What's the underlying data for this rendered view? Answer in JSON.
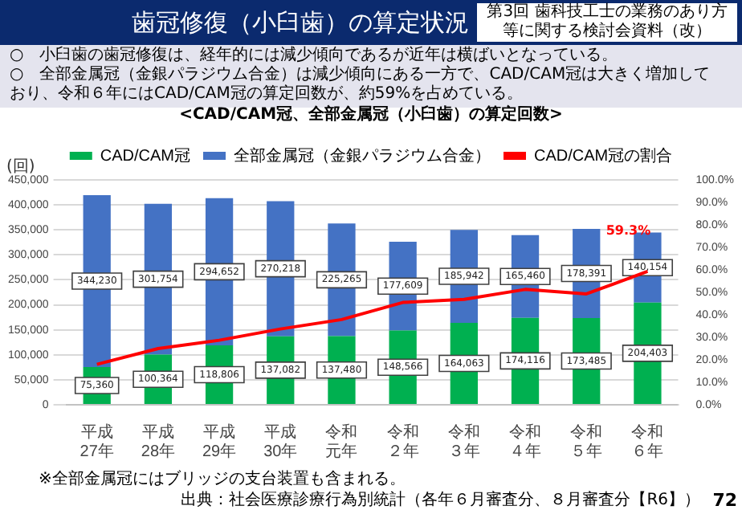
{
  "chart_data": {
    "type": "bar",
    "title": "歯冠修復（小臼歯）の算定状況",
    "subtitle": "<CAD/CAM冠、全部金属冠（小臼歯）の算定回数>",
    "ylabel": "(回)",
    "annotations": [
      "第3回 歯科技工士の業務のあり方等に関する検討会資料（改）",
      "○　小臼歯の歯冠修復は、経年的には減少傾向であるが近年は横ばいとなっている。",
      "○　全部金属冠（金銀パラジウム合金）は減少傾向にある一方で、CAD/CAM冠は大きく増加しており、令和６年にはCAD/CAM冠の算定回数が、約59%を占めている。",
      "※全部金属冠にはブリッジの支台装置も含まれる。",
      "出典：社会医療診療行為別統計（各年６月審査分、８月審査分【R6】）",
      "72"
    ],
    "categories": [
      "平成27年",
      "平成28年",
      "平成29年",
      "平成30年",
      "令和元年",
      "令和２年",
      "令和３年",
      "令和４年",
      "令和５年",
      "令和６年"
    ],
    "stacked": true,
    "legend": "top",
    "grid": "y",
    "series": [
      {
        "name": "CAD/CAM冠",
        "color": "#00b050",
        "values": [
          75360,
          100364,
          118806,
          137082,
          137480,
          148566,
          164063,
          174116,
          173485,
          204403
        ],
        "value_labels": [
          "75,360",
          "100,364",
          "118,806",
          "137,082",
          "137,480",
          "148,566",
          "164,063",
          "174,116",
          "173,485",
          "204,403"
        ]
      },
      {
        "name": "全部金属冠（金銀パラジウム合金）",
        "color": "#4472c4",
        "values": [
          344230,
          301754,
          294652,
          270218,
          225265,
          177609,
          185942,
          165460,
          178391,
          140154
        ],
        "value_labels": [
          "344,230",
          "301,754",
          "294,652",
          "270,218",
          "225,265",
          "177,609",
          "185,942",
          "165,460",
          "178,391",
          "140,154"
        ]
      },
      {
        "name": "CAD/CAM冠の割合",
        "type": "line",
        "axis": "y2",
        "color": "#ff0000",
        "values": [
          18.0,
          25.0,
          28.7,
          33.7,
          37.9,
          45.5,
          46.9,
          51.3,
          49.3,
          59.3
        ],
        "value_labels": [
          null,
          null,
          null,
          null,
          null,
          null,
          null,
          null,
          null,
          "59.3%"
        ]
      }
    ],
    "ylim": [
      0,
      450000
    ],
    "yticks": [
      0,
      {
        "value": 50000,
        "label": "50,000"
      },
      {
        "value": 100000,
        "label": "100,000"
      },
      {
        "value": 150000,
        "label": "150,000"
      },
      {
        "value": 200000,
        "label": "200,000"
      },
      {
        "value": 250000,
        "label": "250,000"
      },
      {
        "value": 300000,
        "label": "300,000"
      },
      {
        "value": 350000,
        "label": "350,000"
      },
      {
        "value": 400000,
        "label": "400,000"
      },
      {
        "value": 450000,
        "label": "450,000"
      }
    ],
    "y2lim": [
      0,
      100
    ],
    "y2ticks": [
      {
        "value": 0,
        "label": "0.0%"
      },
      {
        "value": 10,
        "label": "10.0%"
      },
      {
        "value": 20,
        "label": "20.0%"
      },
      {
        "value": 30,
        "label": "30.0%"
      },
      {
        "value": 40,
        "label": "40.0%"
      },
      {
        "value": 50,
        "label": "50.0%"
      },
      {
        "value": 60,
        "label": "60.0%"
      },
      {
        "value": 70,
        "label": "70.0%"
      },
      {
        "value": 80,
        "label": "80.0%"
      },
      {
        "value": 90,
        "label": "90.0%"
      },
      {
        "value": 100,
        "label": "100.0%"
      }
    ]
  }
}
